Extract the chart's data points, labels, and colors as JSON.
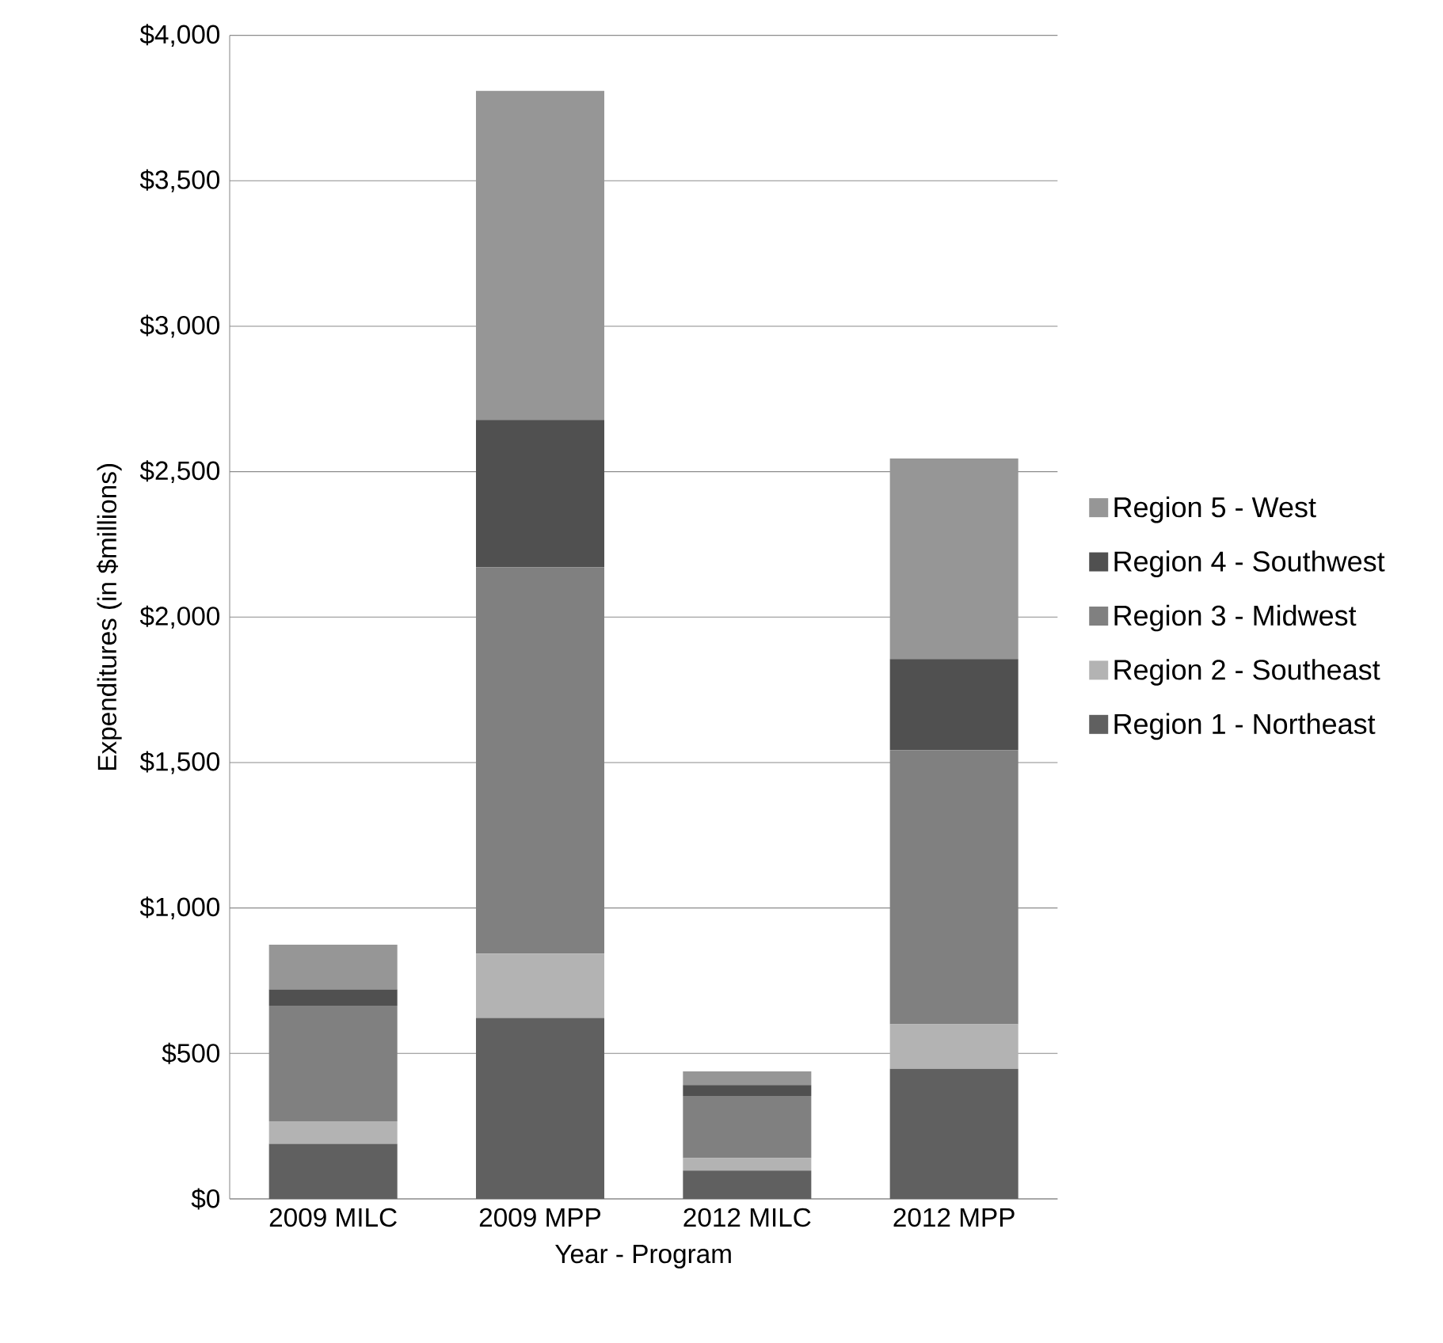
{
  "chart_data": {
    "type": "bar",
    "stacked": true,
    "xlabel": "Year - Program",
    "ylabel": "Expenditures (in $millions)",
    "categories": [
      "2009 MILC",
      "2009 MPP",
      "2012 MILC",
      "2012 MPP"
    ],
    "series": [
      {
        "name": "Region 1 - Northeast",
        "color": "#606060",
        "values": [
          189,
          622,
          97,
          447
        ]
      },
      {
        "name": "Region 2 - Southeast",
        "color": "#b3b3b3",
        "values": [
          78,
          221,
          43,
          153
        ]
      },
      {
        "name": "Region 3 - Midwest",
        "color": "#808080",
        "values": [
          397,
          1329,
          214,
          943
        ]
      },
      {
        "name": "Region 4 - Southwest",
        "color": "#505050",
        "values": [
          56,
          506,
          37,
          313
        ]
      },
      {
        "name": "Region 5 - West",
        "color": "#969696",
        "values": [
          154,
          1131,
          47,
          689
        ]
      }
    ],
    "ylim": [
      0,
      4000
    ],
    "yticks": [
      {
        "value": 0,
        "label": "$0"
      },
      {
        "value": 500,
        "label": "$500"
      },
      {
        "value": 1000,
        "label": "$1,000"
      },
      {
        "value": 1500,
        "label": "$1,500"
      },
      {
        "value": 2000,
        "label": "$2,000"
      },
      {
        "value": 2500,
        "label": "$2,500"
      },
      {
        "value": 3000,
        "label": "$3,000"
      },
      {
        "value": 3500,
        "label": "$3,500"
      },
      {
        "value": 4000,
        "label": "$4,000"
      }
    ],
    "grid": "y",
    "legend": "right"
  }
}
